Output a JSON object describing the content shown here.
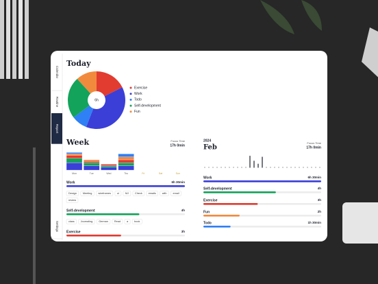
{
  "sidebar": {
    "tabs": [
      "Calendar",
      "Routine",
      "Report",
      "Settings"
    ],
    "active": 2
  },
  "today": {
    "title": "Today"
  },
  "chart_data": [
    {
      "type": "pie",
      "center_label": "6h",
      "categories": [
        "Exercise",
        "Work",
        "Todo",
        "Self-development",
        "Fun"
      ],
      "colors": [
        "#e23b30",
        "#3b3fd8",
        "#2f7ff5",
        "#13a35b",
        "#f28a3d"
      ],
      "values": [
        3,
        6.5,
        1.5,
        4,
        2
      ]
    },
    {
      "type": "bar",
      "stacked": true,
      "title": "Week",
      "focus_label": "Focus Time",
      "focus_value": "17h 0min",
      "categories": [
        "Mon",
        "Tue",
        "Wed",
        "Thu",
        "Fri",
        "Sat",
        "Sun"
      ],
      "series": [
        {
          "color": "#3b3fd8",
          "values": [
            2.5,
            1.5,
            1,
            1.5,
            0,
            0,
            0
          ]
        },
        {
          "color": "#13a35b",
          "values": [
            1.5,
            1,
            0.5,
            1,
            0,
            0,
            0
          ]
        },
        {
          "color": "#e23b30",
          "values": [
            1,
            0.5,
            0.5,
            1,
            0,
            0,
            0
          ]
        },
        {
          "color": "#f28a3d",
          "values": [
            0.5,
            0.5,
            0,
            1,
            0,
            0,
            0
          ]
        },
        {
          "color": "#2f7ff5",
          "values": [
            0.5,
            0,
            0,
            1,
            0,
            0,
            0
          ]
        }
      ]
    },
    {
      "type": "bar",
      "year": "2024",
      "title": "Feb",
      "focus_label": "Focus Time",
      "focus_value": "17h 0min",
      "values": [
        0,
        0,
        0,
        0,
        0,
        0,
        0,
        0,
        0,
        0,
        0,
        6,
        3.5,
        2,
        5.5,
        0,
        0,
        0,
        0,
        0,
        0,
        0,
        0,
        0,
        0,
        0,
        0,
        0,
        0
      ]
    }
  ],
  "week_summary": [
    {
      "name": "Work",
      "label": "6h 30min",
      "hours": 6.5,
      "color": "#3b3fd8",
      "tags": [
        "Design",
        "Meeting",
        "wireframes",
        "ui",
        "MJ",
        "Check",
        "emails",
        "with",
        "email",
        "review"
      ]
    },
    {
      "name": "Self-development",
      "label": "4h",
      "hours": 4,
      "color": "#13a35b",
      "tags": [
        "class",
        "Journaling",
        "German",
        "Read",
        "a",
        "book"
      ]
    },
    {
      "name": "Exercise",
      "label": "3h",
      "hours": 3,
      "color": "#e23b30",
      "tags": []
    }
  ],
  "month_summary": [
    {
      "name": "Work",
      "label": "6h 30min",
      "hours": 6.5,
      "color": "#3b3fd8"
    },
    {
      "name": "Self-development",
      "label": "4h",
      "hours": 4,
      "color": "#13a35b"
    },
    {
      "name": "Exercise",
      "label": "3h",
      "hours": 3,
      "color": "#e23b30"
    },
    {
      "name": "Fun",
      "label": "2h",
      "hours": 2,
      "color": "#f28a3d"
    },
    {
      "name": "Todo",
      "label": "1h 30min",
      "hours": 1.5,
      "color": "#2f7ff5"
    }
  ]
}
